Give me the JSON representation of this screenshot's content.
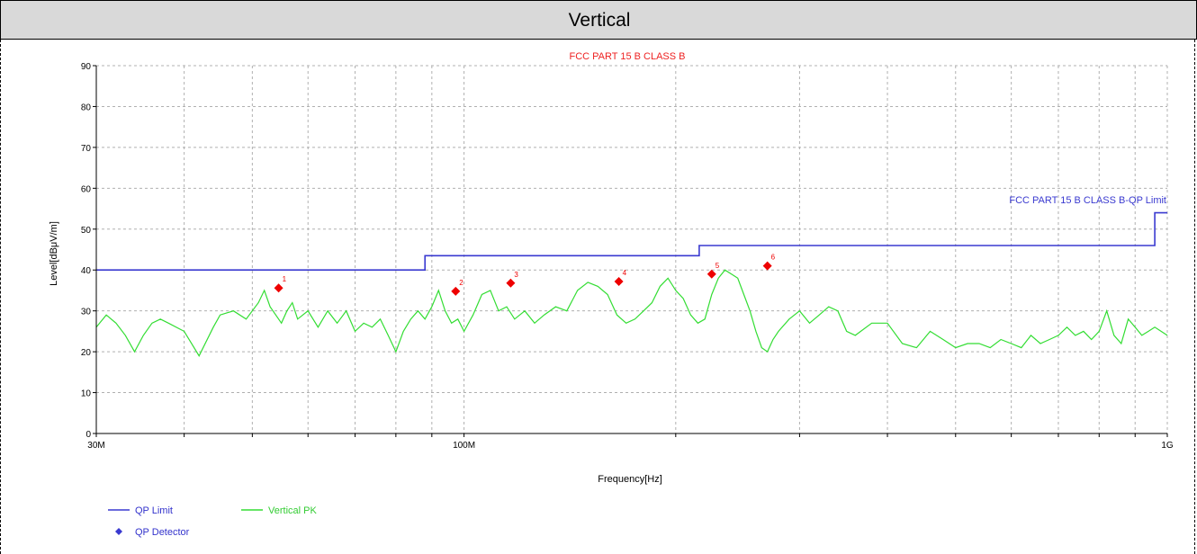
{
  "header": {
    "title": "Vertical"
  },
  "chart_data": {
    "type": "line",
    "title": "FCC PART 15 B CLASS B",
    "xlabel": "Frequency[Hz]",
    "ylabel": "Level[dBμV/m]",
    "x_scale": "log",
    "xlim": [
      30,
      1000
    ],
    "ylim": [
      0,
      90
    ],
    "x_tick_labels": [
      {
        "value": 30,
        "label": "30M"
      },
      {
        "value": 100,
        "label": "100M"
      },
      {
        "value": 1000,
        "label": "1G"
      }
    ],
    "y_ticks": [
      0,
      10,
      20,
      30,
      40,
      50,
      60,
      70,
      80,
      90
    ],
    "grid": true,
    "colors": {
      "limit": "#3a3ad0",
      "trace": "#33dd33",
      "marker": "#ee0000",
      "title": "#ee2222",
      "limit_label": "#3a3ad0"
    },
    "limit_label": "FCC PART 15 B CLASS B-QP Limit",
    "series": [
      {
        "name": "QP Limit",
        "type": "step",
        "x": [
          30,
          88,
          88,
          216,
          216,
          960,
          960,
          1000
        ],
        "y": [
          40,
          40,
          43.5,
          43.5,
          46,
          46,
          54,
          54
        ]
      },
      {
        "name": "Vertical PK",
        "type": "line",
        "x": [
          30,
          31,
          32,
          33,
          34,
          35,
          36,
          37,
          38,
          40,
          42,
          44,
          45,
          47,
          49,
          51,
          52,
          53,
          55,
          56,
          57,
          58,
          60,
          62,
          64,
          66,
          68,
          70,
          72,
          74,
          76,
          78,
          80,
          82,
          84,
          86,
          88,
          90,
          92,
          94,
          96,
          98,
          100,
          103,
          106,
          109,
          112,
          115,
          118,
          122,
          126,
          130,
          135,
          140,
          145,
          150,
          155,
          160,
          165,
          170,
          175,
          180,
          185,
          190,
          195,
          200,
          205,
          210,
          215,
          220,
          225,
          230,
          235,
          240,
          245,
          250,
          255,
          260,
          265,
          270,
          275,
          280,
          290,
          300,
          310,
          320,
          330,
          340,
          350,
          360,
          380,
          400,
          420,
          440,
          460,
          480,
          500,
          520,
          540,
          560,
          580,
          600,
          620,
          640,
          660,
          680,
          700,
          720,
          740,
          760,
          780,
          800,
          820,
          840,
          860,
          880,
          900,
          920,
          940,
          960,
          980,
          1000
        ],
        "y": [
          26,
          29,
          27,
          24,
          20,
          24,
          27,
          28,
          27,
          25,
          19,
          26,
          29,
          30,
          28,
          32,
          35,
          31,
          27,
          30,
          32,
          28,
          30,
          26,
          30,
          27,
          30,
          25,
          27,
          26,
          28,
          24,
          20,
          25,
          28,
          30,
          28,
          31,
          35,
          30,
          27,
          28,
          25,
          29,
          34,
          35,
          30,
          31,
          28,
          30,
          27,
          29,
          31,
          30,
          35,
          37,
          36,
          34,
          29,
          27,
          28,
          30,
          32,
          36,
          38,
          35,
          33,
          29,
          27,
          28,
          34,
          38,
          40,
          39,
          38,
          34,
          30,
          25,
          21,
          20,
          23,
          25,
          28,
          30,
          27,
          29,
          31,
          30,
          25,
          24,
          27,
          27,
          22,
          21,
          25,
          23,
          21,
          22,
          22,
          21,
          23,
          22,
          21,
          24,
          22,
          23,
          24,
          26,
          24,
          25,
          23,
          25,
          30,
          24,
          22,
          28,
          26,
          24,
          25,
          26,
          25,
          24
        ]
      },
      {
        "name": "QP Detector",
        "type": "scatter",
        "x": [
          54.5,
          97.3,
          116.5,
          166,
          225,
          270
        ],
        "y": [
          35.6,
          34.8,
          36.8,
          37.2,
          39.0,
          41.0
        ],
        "labels": [
          "1",
          "2",
          "3",
          "4",
          "5",
          "6"
        ]
      }
    ],
    "legend": {
      "placement": "bottom-left",
      "items": [
        {
          "label": "QP Limit",
          "symbol": "line",
          "color": "#3a3ad0"
        },
        {
          "label": "Vertical PK",
          "symbol": "line",
          "color": "#33dd33"
        },
        {
          "label": "QP Detector",
          "symbol": "diamond",
          "color": "#3a3ad0"
        }
      ]
    }
  }
}
